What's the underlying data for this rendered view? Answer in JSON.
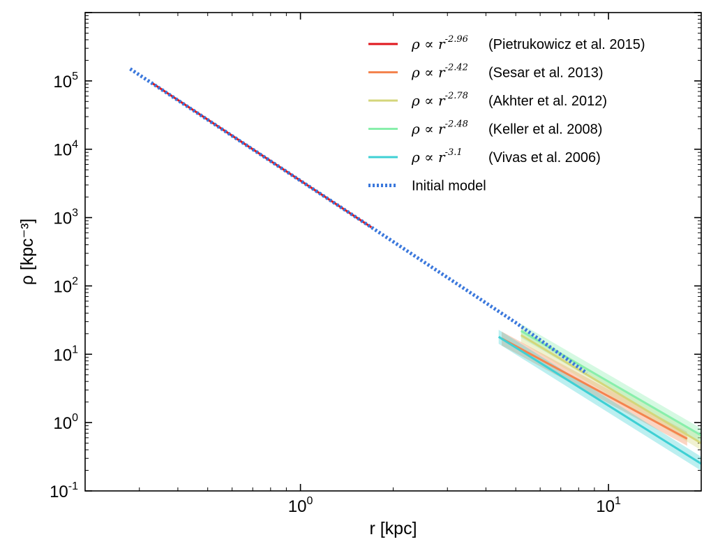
{
  "chart_data": {
    "type": "line",
    "xscale": "log",
    "yscale": "log",
    "xlim": [
      0.2,
      20
    ],
    "ylim": [
      0.1,
      1000000
    ],
    "xlabel": "r [kpc]",
    "ylabel": "ρ [kpc⁻³]",
    "x_ticks": [
      {
        "value": 1,
        "base": "10",
        "exp": "0"
      },
      {
        "value": 10,
        "base": "10",
        "exp": "1"
      }
    ],
    "y_ticks": [
      {
        "value": 0.1,
        "base": "10",
        "exp": "-1"
      },
      {
        "value": 1,
        "base": "10",
        "exp": "0"
      },
      {
        "value": 10,
        "base": "10",
        "exp": "1"
      },
      {
        "value": 100,
        "base": "10",
        "exp": "2"
      },
      {
        "value": 1000,
        "base": "10",
        "exp": "3"
      },
      {
        "value": 10000,
        "base": "10",
        "exp": "4"
      },
      {
        "value": 100000,
        "base": "10",
        "exp": "5"
      }
    ],
    "legend_position": "top-right",
    "series": [
      {
        "name": "(Pietrukowicz et al. 2015)",
        "exponent": "-2.96",
        "color": "#e0161c",
        "style": "solid",
        "band": false,
        "x": [
          0.33,
          1.7
        ],
        "y": [
          93000,
          720
        ]
      },
      {
        "name": "(Sesar et al. 2013)",
        "exponent": "-2.42",
        "color": "#f4844f",
        "style": "solid",
        "band": true,
        "x": [
          4.5,
          18
        ],
        "y": [
          17,
          0.58
        ]
      },
      {
        "name": "(Akhter et al. 2012)",
        "exponent": "-2.78",
        "color": "#d4d67b",
        "style": "solid",
        "band": true,
        "x": [
          5.2,
          20
        ],
        "y": [
          19,
          0.5
        ]
      },
      {
        "name": "(Keller et al. 2008)",
        "exponent": "-2.48",
        "color": "#88efab",
        "style": "solid",
        "band": true,
        "x": [
          5.2,
          20
        ],
        "y": [
          22,
          0.65
        ]
      },
      {
        "name": "(Vivas et al. 2006)",
        "exponent": "-3.1",
        "color": "#3fd0d4",
        "style": "solid",
        "band": true,
        "x": [
          4.4,
          20
        ],
        "y": [
          18,
          0.25
        ]
      },
      {
        "name": "Initial model",
        "exponent": "",
        "color": "#3b78dc",
        "style": "dotted",
        "band": false,
        "x": [
          0.28,
          1.7,
          5.0,
          8.5
        ],
        "y": [
          150000,
          720,
          29,
          5.3
        ]
      }
    ]
  }
}
